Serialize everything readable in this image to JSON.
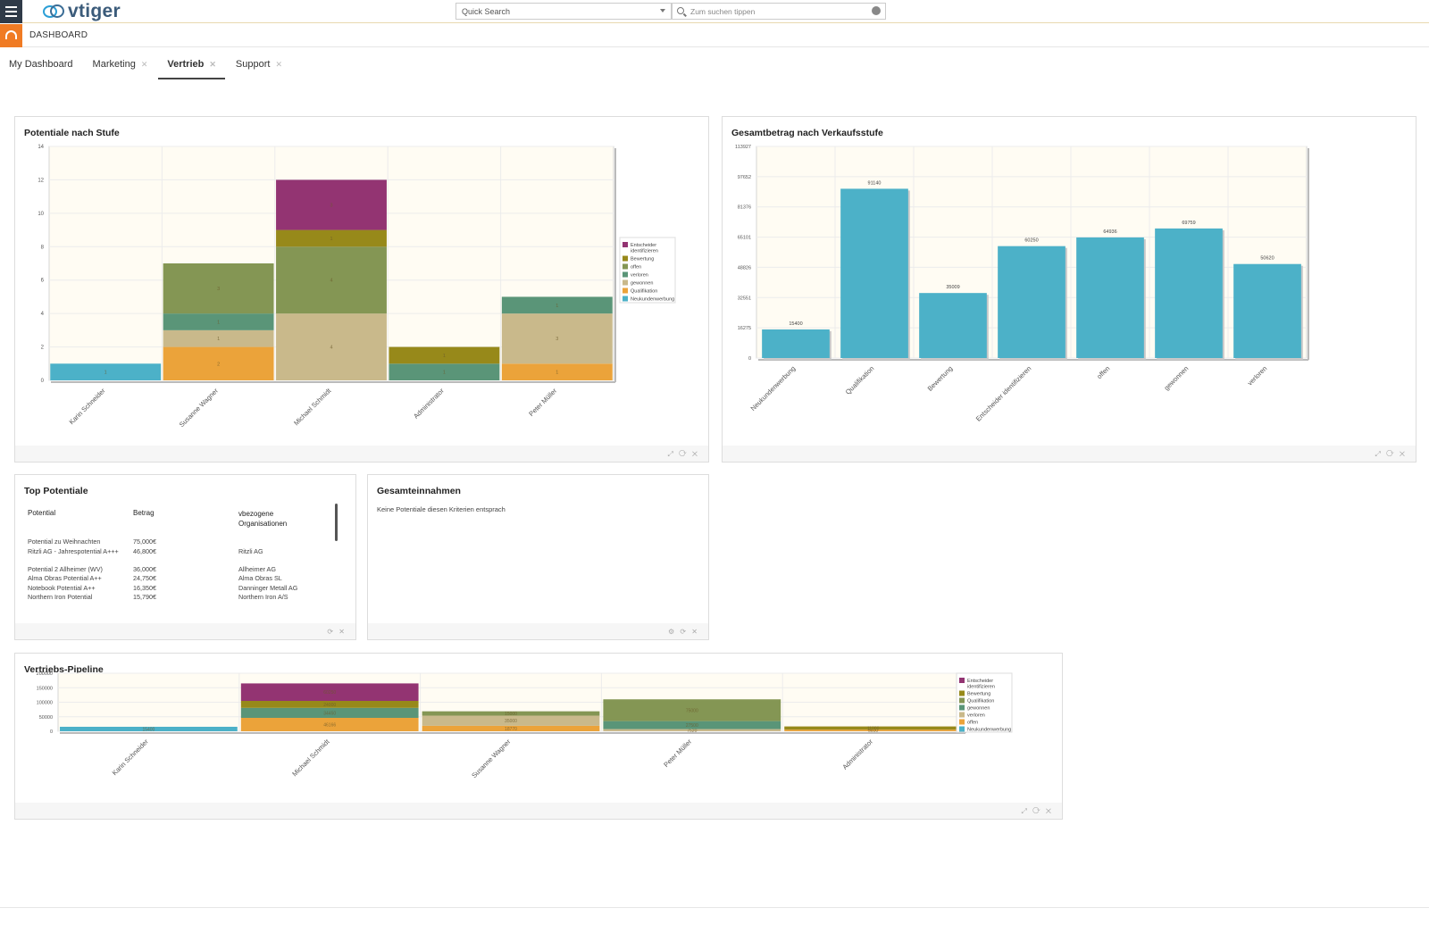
{
  "header": {
    "logo_text": "vtiger",
    "quick_search_select": "Quick Search",
    "search_placeholder": "Zum suchen tippen"
  },
  "subheader": {
    "module_label": "DASHBOARD"
  },
  "tabs": [
    {
      "label": "My Dashboard",
      "closable": false,
      "active": false
    },
    {
      "label": "Marketing",
      "closable": true,
      "active": false
    },
    {
      "label": "Vertrieb",
      "closable": true,
      "active": true
    },
    {
      "label": "Support",
      "closable": true,
      "active": false
    }
  ],
  "widgets": {
    "potentiale_nach_stufe": {
      "title": "Potentiale nach Stufe"
    },
    "gesamtbetrag": {
      "title": "Gesamtbetrag nach Verkaufsstufe"
    },
    "top_potentiale": {
      "title": "Top Potentiale",
      "columns": [
        "Potential",
        "Betrag",
        "vbezogene Organisationen"
      ],
      "rows": [
        [
          "Potential zu Weihnachten",
          "75,000€",
          ""
        ],
        [
          "Ritzli AG - Jahrespotential A+++",
          "46,800€",
          "Ritzli AG"
        ],
        [
          "Potential 2 Allheimer (WV)",
          "36,000€",
          "Allheimer AG"
        ],
        [
          "Alma Obras Potential A++",
          "24,750€",
          "Alma Obras SL"
        ],
        [
          "Notebook Potential A++",
          "16,350€",
          "Danninger Metall AG"
        ],
        [
          "Northern Iron Potential",
          "15,790€",
          "Northern Iron A/S"
        ]
      ]
    },
    "gesamteinnahmen": {
      "title": "Gesamteinnahmen",
      "empty_text": "Keine Potentiale diesen Kriterien entsprach"
    },
    "vertriebs_pipeline": {
      "title": "Vertriebs-Pipeline"
    }
  },
  "colors": {
    "entscheider": "#933472",
    "bewertung": "#97891a",
    "offen": "#849654",
    "verloren": "#5a9578",
    "gewonnen": "#c9b98b",
    "qualifikation": "#eba33a",
    "neukunden": "#4cb1c8"
  },
  "chart_data": [
    {
      "type": "bar",
      "stacked": true,
      "title": "Potentiale nach Stufe",
      "categories": [
        "Karin Schneider",
        "Susanne Wagner",
        "Michael Schmidt",
        "Administrator",
        "Peter Müller"
      ],
      "ylim": [
        0,
        14
      ],
      "yticks": [
        0,
        2,
        4,
        6,
        8,
        10,
        12,
        14
      ],
      "legend_position": "right",
      "series": [
        {
          "name": "Neukundenwerbung",
          "color": "#4cb1c8",
          "values": [
            1,
            0,
            0,
            0,
            0
          ]
        },
        {
          "name": "Qualifikation",
          "color": "#eba33a",
          "values": [
            0,
            2,
            0,
            0,
            1
          ]
        },
        {
          "name": "gewonnen",
          "color": "#c9b98b",
          "values": [
            0,
            1,
            4,
            0,
            3
          ]
        },
        {
          "name": "verloren",
          "color": "#5a9578",
          "values": [
            0,
            1,
            0,
            1,
            1
          ]
        },
        {
          "name": "offen",
          "color": "#849654",
          "values": [
            0,
            3,
            4,
            0,
            0
          ]
        },
        {
          "name": "Bewertung",
          "color": "#97891a",
          "values": [
            0,
            0,
            1,
            1,
            0
          ]
        },
        {
          "name": "Entscheider identifizieren",
          "color": "#933472",
          "values": [
            0,
            0,
            3,
            0,
            0
          ]
        }
      ],
      "legend_order": [
        "Entscheider identifizieren",
        "Bewertung",
        "offen",
        "verloren",
        "gewonnen",
        "Qualifikation",
        "Neukundenwerbung"
      ]
    },
    {
      "type": "bar",
      "title": "Gesamtbetrag nach Verkaufsstufe",
      "categories": [
        "Neukundenwerbung",
        "Qualifikation",
        "Bewertung",
        "Entscheider identifizieren",
        "offen",
        "gewonnen",
        "verloren"
      ],
      "values": [
        15400,
        91140,
        35009,
        60250,
        64936,
        69759,
        50620
      ],
      "ylim": [
        0,
        113927
      ],
      "yticks": [
        0,
        16275,
        32551,
        48826,
        65101,
        81376,
        97652,
        113927
      ],
      "color": "#4cb1c8"
    },
    {
      "type": "bar",
      "stacked": true,
      "title": "Vertriebs-Pipeline",
      "categories": [
        "Karin Schneider",
        "Michael Schmidt",
        "Susanne Wagner",
        "Peter Müller",
        "Administrator"
      ],
      "ylim": [
        0,
        200000
      ],
      "yticks": [
        0,
        50000,
        100000,
        150000,
        200000
      ],
      "legend_position": "right",
      "series": [
        {
          "name": "Neukundenwerbung",
          "color": "#4cb1c8",
          "values": [
            15400,
            0,
            0,
            0,
            0
          ]
        },
        {
          "name": "offen",
          "color": "#eba33a",
          "values": [
            0,
            46166,
            18770,
            0,
            5600
          ]
        },
        {
          "name": "verloren",
          "color": "#c9b98b",
          "values": [
            0,
            0,
            35000,
            7520,
            0
          ]
        },
        {
          "name": "gewonnen",
          "color": "#5a9578",
          "values": [
            0,
            34450,
            0,
            27500,
            0
          ]
        },
        {
          "name": "Qualifikation",
          "color": "#849654",
          "values": [
            0,
            0,
            15000,
            75000,
            0
          ]
        },
        {
          "name": "Bewertung",
          "color": "#97891a",
          "values": [
            0,
            24000,
            0,
            0,
            11000
          ]
        },
        {
          "name": "Entscheider identifizieren",
          "color": "#933472",
          "values": [
            0,
            60250,
            0,
            0,
            0
          ]
        }
      ],
      "legend_order": [
        "Entscheider identifizieren",
        "Bewertung",
        "Qualifikation",
        "gewonnen",
        "verloren",
        "offen",
        "Neukundenwerbung"
      ]
    }
  ]
}
